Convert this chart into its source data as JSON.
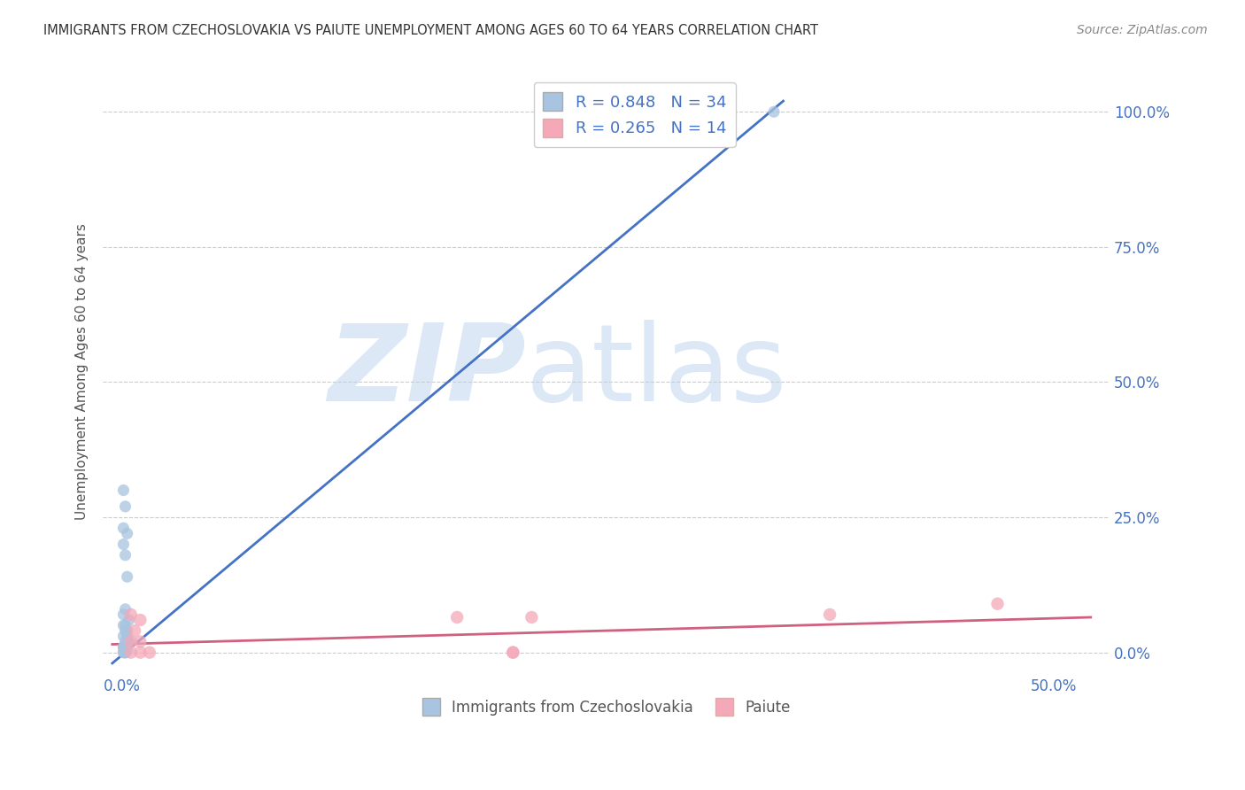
{
  "title": "IMMIGRANTS FROM CZECHOSLOVAKIA VS PAIUTE UNEMPLOYMENT AMONG AGES 60 TO 64 YEARS CORRELATION CHART",
  "source": "Source: ZipAtlas.com",
  "ylabel": "Unemployment Among Ages 60 to 64 years",
  "ytick_labels": [
    "0.0%",
    "25.0%",
    "50.0%",
    "75.0%",
    "100.0%"
  ],
  "xtick_positions": [
    0,
    0.1,
    0.2,
    0.3,
    0.4,
    0.5
  ],
  "xtick_labels_show": [
    "0.0%",
    "",
    "",
    "",
    "",
    "50.0%"
  ],
  "ytick_positions": [
    0,
    0.25,
    0.5,
    0.75,
    1.0
  ],
  "xlim": [
    -0.01,
    0.53
  ],
  "ylim": [
    -0.04,
    1.08
  ],
  "legend_blue_label": "R = 0.848   N = 34",
  "legend_pink_label": "R = 0.265   N = 14",
  "legend_blue_series": "Immigrants from Czechoslovakia",
  "legend_pink_series": "Paiute",
  "blue_scatter_x": [
    0.001,
    0.002,
    0.003,
    0.001,
    0.002,
    0.001,
    0.003,
    0.002,
    0.001,
    0.004,
    0.002,
    0.001,
    0.003,
    0.002,
    0.001,
    0.003,
    0.002,
    0.004,
    0.003,
    0.002,
    0.001,
    0.002,
    0.002,
    0.001,
    0.003,
    0.002,
    0.001,
    0.002,
    0.001,
    0.002,
    0.002,
    0.28,
    0.35,
    0.002
  ],
  "blue_scatter_y": [
    0.2,
    0.27,
    0.22,
    0.3,
    0.18,
    0.23,
    0.14,
    0.08,
    0.07,
    0.06,
    0.05,
    0.05,
    0.04,
    0.04,
    0.03,
    0.03,
    0.02,
    0.02,
    0.02,
    0.01,
    0.01,
    0.01,
    0.005,
    0.01,
    0.005,
    0.01,
    0.0,
    0.0,
    0.0,
    0.0,
    0.0,
    1.0,
    1.0,
    0.0
  ],
  "pink_scatter_x": [
    0.005,
    0.01,
    0.007,
    0.18,
    0.22,
    0.005,
    0.01,
    0.015,
    0.005,
    0.01,
    0.38,
    0.47,
    0.21,
    0.21
  ],
  "pink_scatter_y": [
    0.07,
    0.06,
    0.04,
    0.065,
    0.065,
    0.02,
    0.02,
    0.0,
    0.0,
    0.0,
    0.07,
    0.09,
    0.0,
    0.0
  ],
  "blue_line_x": [
    -0.005,
    0.355
  ],
  "blue_line_y": [
    -0.02,
    1.02
  ],
  "pink_line_x": [
    -0.005,
    0.52
  ],
  "pink_line_y": [
    0.015,
    0.065
  ],
  "blue_color": "#a8c4e0",
  "blue_line_color": "#4472c4",
  "pink_color": "#f4a8b8",
  "pink_line_color": "#d06080",
  "watermark_zip": "ZIP",
  "watermark_atlas": "atlas",
  "watermark_color": "#dce8f5",
  "grid_color": "#cccccc",
  "title_color": "#333333",
  "axis_label_color": "#4472c4",
  "legend_text_color": "#4472c4",
  "background_color": "#ffffff",
  "dot_size": 90
}
